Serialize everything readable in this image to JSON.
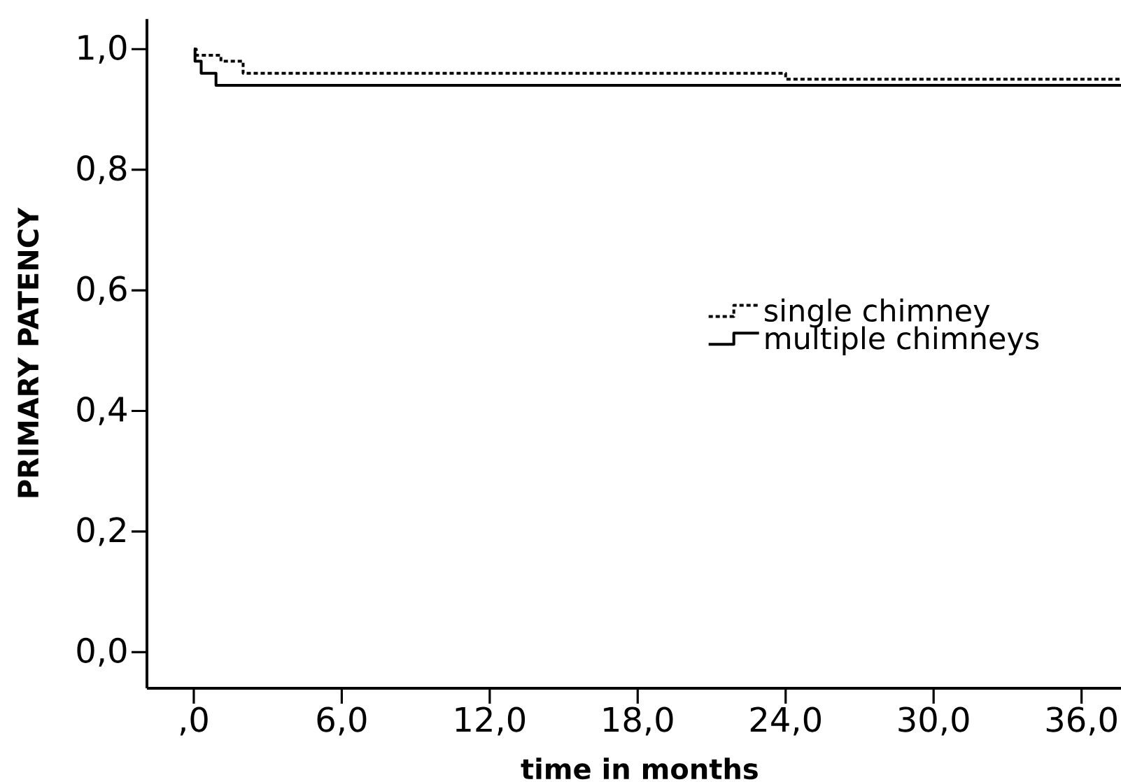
{
  "chart_data": {
    "type": "step",
    "xlabel": "time in months",
    "ylabel": "PRIMARY PATENCY",
    "xlim": [
      -1.9,
      37.6
    ],
    "ylim": [
      -0.06,
      1.05
    ],
    "xticks": [
      {
        "value": 0,
        "label": ",0"
      },
      {
        "value": 6,
        "label": "6,0"
      },
      {
        "value": 12,
        "label": "12,0"
      },
      {
        "value": 18,
        "label": "18,0"
      },
      {
        "value": 24,
        "label": "24,0"
      },
      {
        "value": 30,
        "label": "30,0"
      },
      {
        "value": 36,
        "label": "36,0"
      }
    ],
    "yticks": [
      {
        "value": 0,
        "label": "0,0"
      },
      {
        "value": 0.2,
        "label": "0,2"
      },
      {
        "value": 0.4,
        "label": "0,4"
      },
      {
        "value": 0.6,
        "label": "0,6"
      },
      {
        "value": 0.8,
        "label": "0,8"
      },
      {
        "value": 1.0,
        "label": "1,0"
      }
    ],
    "legend": "right",
    "series": [
      {
        "name": "single chimney",
        "color": "#000000",
        "line_style": "dotted",
        "x": [
          0,
          0.1,
          1.1,
          2.0,
          24,
          37.6
        ],
        "values": [
          1,
          0.99,
          0.98,
          0.96,
          0.95,
          0.95
        ]
      },
      {
        "name": "multiple chimneys",
        "color": "#000000",
        "line_style": "solid",
        "x": [
          0,
          0.05,
          0.3,
          0.9,
          37.6
        ],
        "values": [
          1,
          0.98,
          0.96,
          0.94,
          0.94
        ]
      }
    ]
  }
}
